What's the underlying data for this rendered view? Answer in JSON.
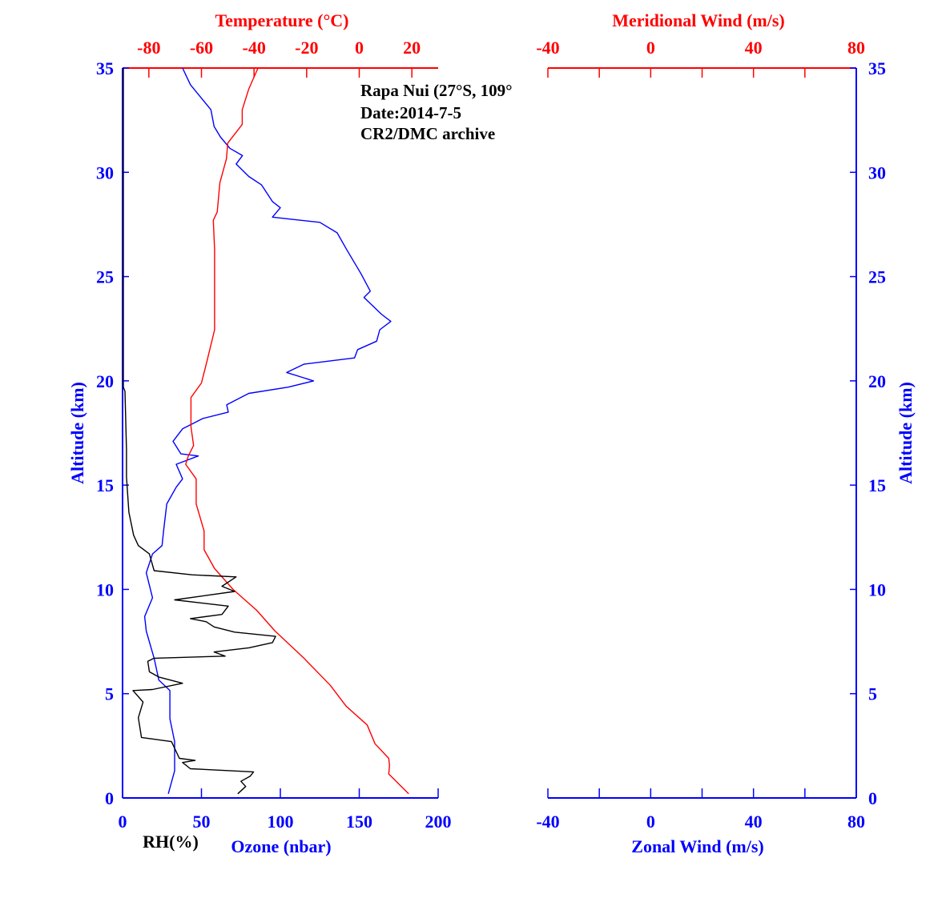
{
  "chart_data": {
    "type": "line",
    "panels": [
      {
        "name": "profile",
        "top_axis": {
          "label": "Temperature (°C)",
          "range": [
            -90,
            30
          ],
          "ticks": [
            -80,
            -60,
            -40,
            -20,
            0,
            20
          ],
          "color": "#ff0000"
        },
        "bottom_axis": {
          "label": "Ozone (nbar)",
          "secondary_label": "RH(%)",
          "range": [
            0,
            200
          ],
          "ticks": [
            0,
            50,
            100,
            150,
            200
          ],
          "color": "#0000ff"
        },
        "y_axis": {
          "label": "Altitude (km)",
          "range": [
            0,
            35
          ],
          "ticks": [
            0,
            5,
            10,
            15,
            20,
            25,
            30,
            35
          ],
          "color": "#0000ff"
        },
        "annotations": [
          "Rapa Nui (27°S, 109°",
          "Date:2014-7-5",
          "CR2/DMC archive"
        ],
        "series": [
          {
            "name": "Ozone (nbar)",
            "color": "#0000ff",
            "axis": "bottom",
            "points": [
              [
                29,
                0.2
              ],
              [
                33,
                1.3
              ],
              [
                33,
                2.7
              ],
              [
                30,
                3.8
              ],
              [
                30,
                5.15
              ],
              [
                23,
                5.65
              ],
              [
                20,
                6.7
              ],
              [
                15,
                8.0
              ],
              [
                14,
                8.7
              ],
              [
                19,
                9.6
              ],
              [
                15,
                10.8
              ],
              [
                19,
                11.7
              ],
              [
                25,
                12.1
              ],
              [
                26,
                12.8
              ],
              [
                28,
                14.1
              ],
              [
                34,
                14.9
              ],
              [
                38,
                15.3
              ],
              [
                34,
                16.0
              ],
              [
                48,
                16.4
              ],
              [
                37,
                16.5
              ],
              [
                32,
                17.1
              ],
              [
                38,
                17.7
              ],
              [
                51,
                18.2
              ],
              [
                67,
                18.5
              ],
              [
                66,
                18.85
              ],
              [
                80,
                19.4
              ],
              [
                105,
                19.7
              ],
              [
                121,
                20.0
              ],
              [
                104,
                20.4
              ],
              [
                115,
                20.8
              ],
              [
                147,
                21.1
              ],
              [
                149,
                21.5
              ],
              [
                161,
                21.9
              ],
              [
                163,
                22.45
              ],
              [
                170,
                22.85
              ],
              [
                164,
                23.2
              ],
              [
                153,
                24.0
              ],
              [
                157,
                24.3
              ],
              [
                151,
                25.15
              ],
              [
                142,
                26.3
              ],
              [
                136,
                27.1
              ],
              [
                125,
                27.6
              ],
              [
                95,
                27.85
              ],
              [
                100,
                28.3
              ],
              [
                95,
                28.6
              ],
              [
                88,
                29.4
              ],
              [
                80,
                29.8
              ],
              [
                72,
                30.4
              ],
              [
                76,
                30.8
              ],
              [
                68,
                31.15
              ],
              [
                62,
                31.7
              ],
              [
                58,
                32.2
              ],
              [
                56,
                33.0
              ],
              [
                43,
                34.2
              ],
              [
                38,
                35.0
              ]
            ]
          },
          {
            "name": "Temperature (°C)",
            "color": "#ff0000",
            "axis": "top",
            "points": [
              [
                18.8,
                0.2
              ],
              [
                11.2,
                1.15
              ],
              [
                11.5,
                1.55
              ],
              [
                11.2,
                1.9
              ],
              [
                6,
                2.6
              ],
              [
                3,
                3.5
              ],
              [
                -5,
                4.4
              ],
              [
                -11,
                5.4
              ],
              [
                -21,
                6.7
              ],
              [
                -32,
                8.0
              ],
              [
                -39,
                9.0
              ],
              [
                -48,
                10.0
              ],
              [
                -55,
                11.0
              ],
              [
                -59,
                11.9
              ],
              [
                -59,
                12.8
              ],
              [
                -62,
                14.1
              ],
              [
                -62,
                15.3
              ],
              [
                -66,
                16.0
              ],
              [
                -65,
                16.4
              ],
              [
                -63,
                16.9
              ],
              [
                -64,
                17.8
              ],
              [
                -64,
                18.1
              ],
              [
                -64,
                19.2
              ],
              [
                -60,
                19.9
              ],
              [
                -58,
                20.9
              ],
              [
                -55,
                22.45
              ],
              [
                -55,
                24.4
              ],
              [
                -55,
                26.3
              ],
              [
                -55.5,
                27.7
              ],
              [
                -54,
                28.1
              ],
              [
                -53,
                29.5
              ],
              [
                -50.5,
                30.65
              ],
              [
                -50,
                31.4
              ],
              [
                -44.5,
                32.3
              ],
              [
                -44.5,
                33.0
              ],
              [
                -42,
                34.0
              ],
              [
                -38.5,
                35.0
              ]
            ]
          },
          {
            "name": "RH(%)",
            "color": "#000000",
            "axis": "bottom",
            "points": [
              [
                73,
                0.2
              ],
              [
                78,
                0.55
              ],
              [
                75,
                0.8
              ],
              [
                81,
                1.05
              ],
              [
                83,
                1.25
              ],
              [
                43,
                1.4
              ],
              [
                38,
                1.7
              ],
              [
                46,
                1.8
              ],
              [
                36,
                1.9
              ],
              [
                31,
                2.7
              ],
              [
                12,
                2.9
              ],
              [
                10,
                3.85
              ],
              [
                13,
                4.6
              ],
              [
                6.6,
                5.15
              ],
              [
                19,
                5.2
              ],
              [
                38,
                5.5
              ],
              [
                23,
                5.8
              ],
              [
                17,
                6.05
              ],
              [
                16,
                6.55
              ],
              [
                20,
                6.7
              ],
              [
                65,
                6.8
              ],
              [
                58,
                7.0
              ],
              [
                80,
                7.2
              ],
              [
                95,
                7.45
              ],
              [
                97,
                7.75
              ],
              [
                71,
                7.95
              ],
              [
                58,
                8.2
              ],
              [
                53,
                8.45
              ],
              [
                43,
                8.6
              ],
              [
                63,
                8.8
              ],
              [
                67,
                9.2
              ],
              [
                33,
                9.5
              ],
              [
                71,
                9.9
              ],
              [
                63,
                10.15
              ],
              [
                72,
                10.6
              ],
              [
                44,
                10.7
              ],
              [
                20,
                10.9
              ],
              [
                17,
                11.7
              ],
              [
                10,
                12.1
              ],
              [
                7,
                12.6
              ],
              [
                4,
                13.7
              ],
              [
                2.5,
                15.4
              ],
              [
                2.5,
                16.7
              ],
              [
                1.5,
                19.5
              ],
              [
                0.5,
                19.7
              ],
              [
                0.5,
                35.0
              ]
            ]
          }
        ]
      },
      {
        "name": "wind",
        "top_axis": {
          "label": "Meridional Wind (m/s)",
          "range": [
            -40,
            80
          ],
          "ticks": [
            -40,
            0,
            40,
            80
          ],
          "minor_ticks": [
            -20,
            20,
            60
          ],
          "color": "#ff0000"
        },
        "bottom_axis": {
          "label": "Zonal Wind (m/s)",
          "range": [
            -40,
            80
          ],
          "ticks": [
            -40,
            0,
            40,
            80
          ],
          "minor_ticks": [
            -20,
            20,
            60
          ],
          "color": "#0000ff"
        },
        "y_axis": {
          "label": "Altitude (km)",
          "range": [
            0,
            35
          ],
          "ticks": [
            0,
            5,
            10,
            15,
            20,
            25,
            30,
            35
          ],
          "color": "#0000ff"
        },
        "series": []
      }
    ]
  }
}
